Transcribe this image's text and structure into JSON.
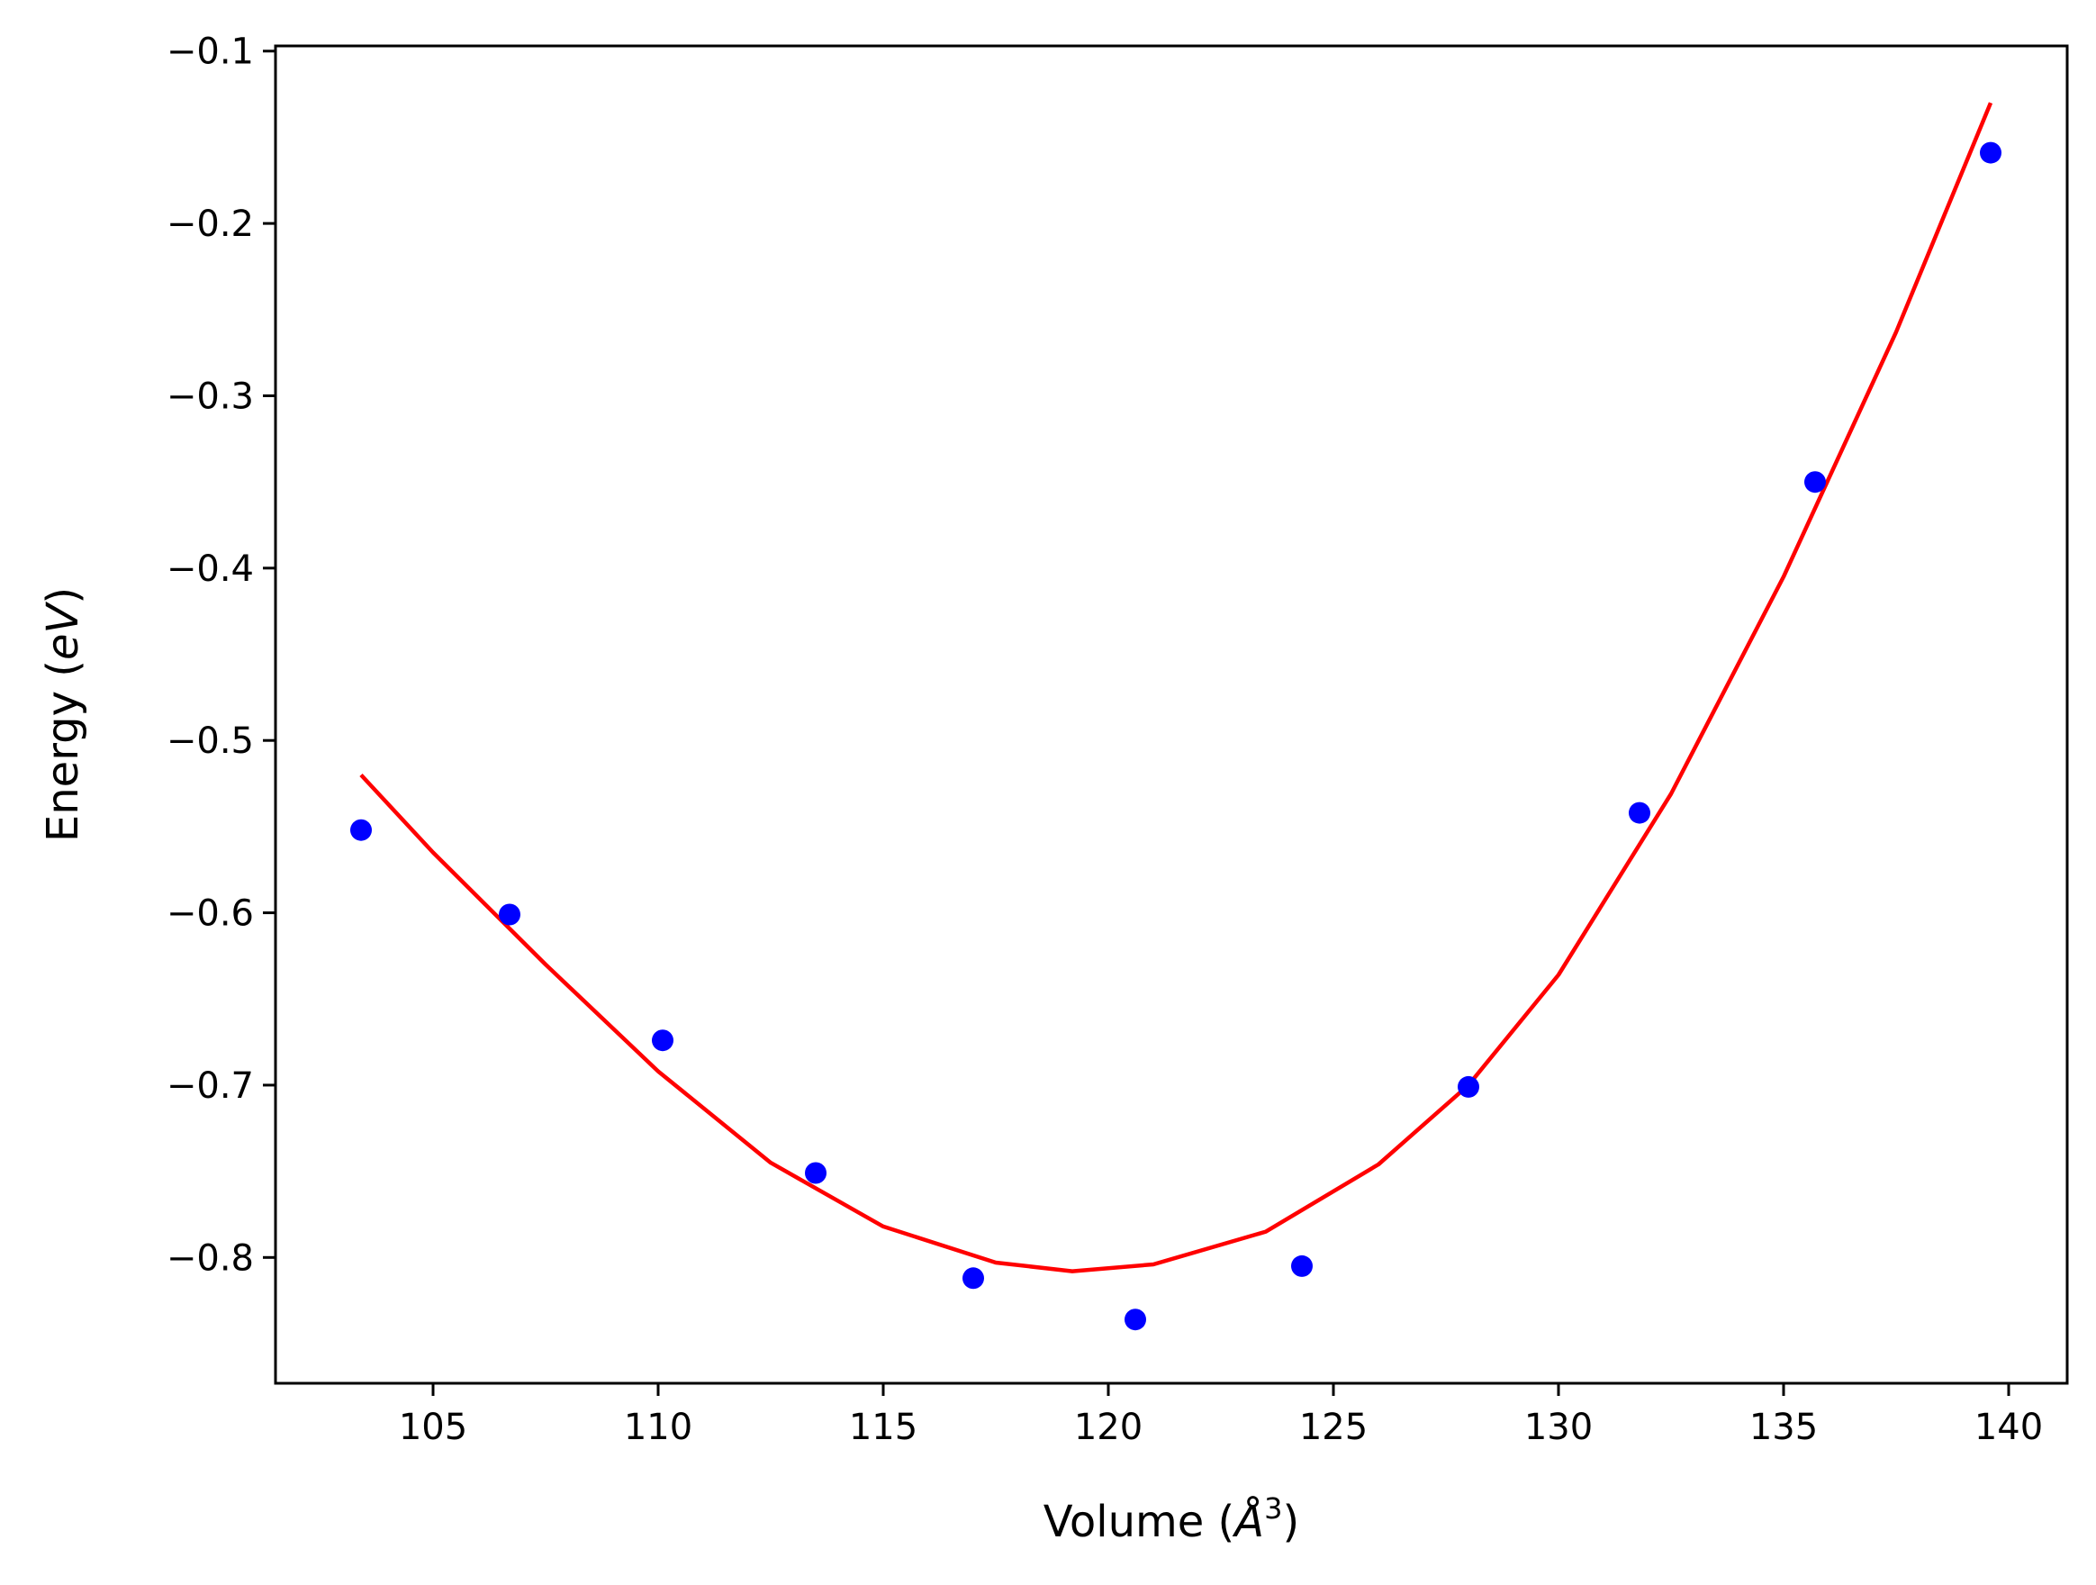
{
  "chart_data": {
    "type": "scatter",
    "title": "",
    "xlabel_prefix": "Volume (",
    "xlabel_unit": "Å",
    "xlabel_exp": "3",
    "xlabel_suffix": ")",
    "ylabel_prefix": "Energy (",
    "ylabel_unit": "eV",
    "ylabel_suffix": ")",
    "xlim": [
      101.5,
      141.3
    ],
    "ylim": [
      -0.873,
      -0.097
    ],
    "xticks": [
      {
        "value": 105,
        "label": "105"
      },
      {
        "value": 110,
        "label": "110"
      },
      {
        "value": 115,
        "label": "115"
      },
      {
        "value": 120,
        "label": "120"
      },
      {
        "value": 125,
        "label": "125"
      },
      {
        "value": 130,
        "label": "130"
      },
      {
        "value": 135,
        "label": "135"
      },
      {
        "value": 140,
        "label": "140"
      }
    ],
    "yticks": [
      {
        "value": -0.1,
        "label": "−0.1"
      },
      {
        "value": -0.2,
        "label": "−0.2"
      },
      {
        "value": -0.3,
        "label": "−0.3"
      },
      {
        "value": -0.4,
        "label": "−0.4"
      },
      {
        "value": -0.5,
        "label": "−0.5"
      },
      {
        "value": -0.6,
        "label": "−0.6"
      },
      {
        "value": -0.7,
        "label": "−0.7"
      },
      {
        "value": -0.8,
        "label": "−0.8"
      }
    ],
    "grid": false,
    "series": [
      {
        "kind": "points",
        "color": "#0000ff",
        "x": [
          103.4,
          106.7,
          110.1,
          113.5,
          117.0,
          120.6,
          124.3,
          128.0,
          131.8,
          135.7,
          139.6
        ],
        "y": [
          -0.552,
          -0.601,
          -0.674,
          -0.751,
          -0.812,
          -0.836,
          -0.805,
          -0.701,
          -0.542,
          -0.35,
          -0.159
        ]
      },
      {
        "kind": "fit-curve",
        "color": "#ff0000",
        "x": [
          103.4,
          105.0,
          107.5,
          110.0,
          112.5,
          115.0,
          117.5,
          119.2,
          121.0,
          123.5,
          126.0,
          128.0,
          130.0,
          132.5,
          135.0,
          137.5,
          139.6
        ],
        "y": [
          -0.52,
          -0.565,
          -0.63,
          -0.692,
          -0.745,
          -0.782,
          -0.803,
          -0.808,
          -0.804,
          -0.785,
          -0.746,
          -0.7,
          -0.636,
          -0.531,
          -0.405,
          -0.263,
          -0.13
        ]
      }
    ]
  }
}
